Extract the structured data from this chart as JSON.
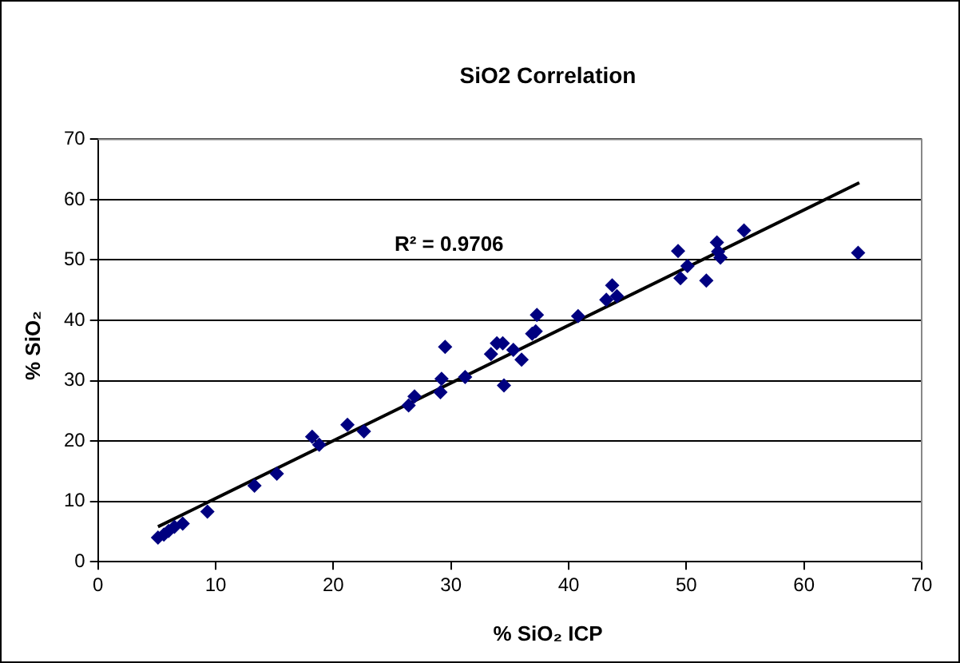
{
  "chart_data": {
    "type": "scatter",
    "title": "SiO2 Correlation",
    "xlabel": "% SiO₂ ICP",
    "ylabel": "% SiO₂",
    "annotations": [
      "R² = 0.9706"
    ],
    "xlim": [
      0,
      70
    ],
    "xticks": [
      0,
      10,
      20,
      30,
      40,
      50,
      60,
      70
    ],
    "ylim": [
      0,
      70
    ],
    "yticks": [
      0,
      10,
      20,
      30,
      40,
      50,
      60,
      70
    ],
    "grid": "y",
    "legend": false,
    "marker": "diamond",
    "series": [
      {
        "type": "scatter",
        "color": "#000080",
        "x": [
          5.1,
          5.6,
          6.0,
          6.5,
          7.2,
          9.3,
          13.3,
          15.2,
          18.2,
          18.8,
          21.2,
          22.6,
          26.4,
          26.9,
          29.1,
          29.2,
          29.5,
          31.2,
          33.4,
          33.9,
          34.4,
          34.5,
          35.3,
          36.0,
          36.9,
          37.2,
          37.3,
          40.8,
          43.2,
          43.7,
          44.1,
          49.3,
          49.5,
          50.1,
          51.7,
          52.6,
          52.9,
          52.7,
          54.9,
          64.6
        ],
        "values": [
          4.0,
          4.5,
          5.1,
          5.8,
          6.3,
          8.3,
          12.6,
          14.6,
          20.7,
          19.4,
          22.7,
          21.6,
          25.9,
          27.4,
          28.1,
          30.3,
          35.6,
          30.6,
          34.4,
          36.2,
          36.2,
          29.2,
          35.1,
          33.5,
          37.8,
          38.2,
          40.9,
          40.7,
          43.4,
          45.8,
          44.0,
          51.5,
          47.0,
          49.0,
          46.6,
          52.9,
          50.4,
          51.4,
          54.9,
          51.2
        ]
      },
      {
        "type": "line",
        "color": "#000000",
        "marker": "none",
        "x": [
          5.1,
          64.7
        ],
        "values": [
          5.8,
          62.8
        ]
      }
    ]
  }
}
